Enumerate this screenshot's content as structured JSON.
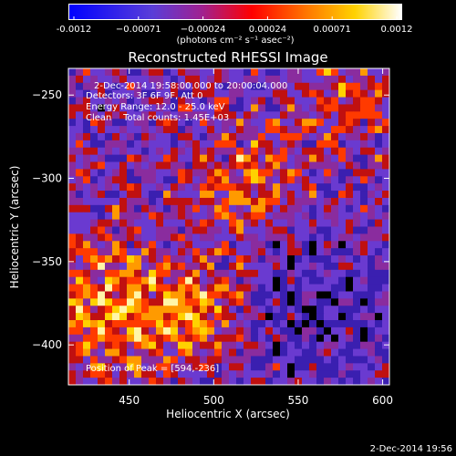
{
  "colorbar": {
    "ticks": [
      "-0.0012",
      "−0.00071",
      "−0.00024",
      "0.00024",
      "0.00071",
      "0.0012"
    ],
    "units": "(photons cm⁻² s⁻¹ asec⁻²)",
    "gradient_stops": [
      "#0000ff",
      "#6a3fd6",
      "#ff0000",
      "#ff7a00",
      "#ffd200",
      "#ffffff"
    ]
  },
  "title": "Reconstructed RHESSI Image",
  "annotations": {
    "time_range": "2-Dec-2014 19:58:00.000 to 20:00:04.000",
    "detectors": "Detectors: 3F 6F 9F, Att 0",
    "energy_range": "Energy Range: 12.0 - 25.0 keV",
    "clean_counts": "Clean    Total counts: 1.45E+03",
    "peak": "Position of Peak = [594,-236]"
  },
  "axes": {
    "xlabel": "Heliocentric X (arcsec)",
    "ylabel": "Heliocentric Y (arcsec)",
    "xticks": [
      "450",
      "500",
      "550",
      "600"
    ],
    "yticks": [
      "−250",
      "−300",
      "−350",
      "−400"
    ],
    "xrange": [
      414,
      604
    ],
    "yrange": [
      -424,
      -234
    ]
  },
  "footer_timestamp": "2-Dec-2014 19:56"
}
